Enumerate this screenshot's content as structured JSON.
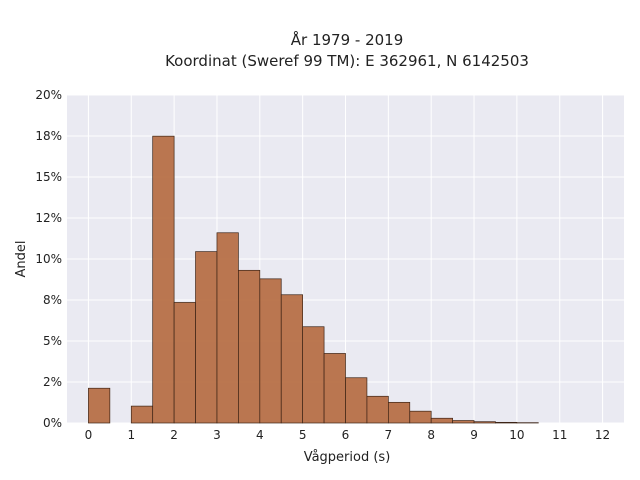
{
  "chart_data": {
    "type": "bar",
    "title": "År 1979 - 2019",
    "subtitle": "Koordinat (Sweref 99 TM): E 362961, N 6142503",
    "xlabel": "Vågperiod (s)",
    "ylabel": "Andel",
    "xlim": [
      -0.5,
      12.5
    ],
    "ylim": [
      0,
      0.2
    ],
    "x_ticks": [
      0,
      1,
      2,
      3,
      4,
      5,
      6,
      7,
      8,
      9,
      10,
      11,
      12
    ],
    "x_tick_labels": [
      "0",
      "1",
      "2",
      "3",
      "4",
      "5",
      "6",
      "7",
      "8",
      "9",
      "10",
      "11",
      "12"
    ],
    "y_ticks": [
      0,
      0.025,
      0.05,
      0.075,
      0.1,
      0.125,
      0.15,
      0.175,
      0.2
    ],
    "y_tick_labels": [
      "0%",
      "2%",
      "5%",
      "8%",
      "10%",
      "12%",
      "15%",
      "18%",
      "20%"
    ],
    "bin_width": 0.5,
    "bin_starts": [
      0,
      1,
      1.5,
      2,
      2.5,
      3,
      3.5,
      4,
      4.5,
      5,
      5.5,
      6,
      6.5,
      7,
      7.5,
      8,
      8.5,
      9,
      9.5,
      10
    ],
    "values": [
      0.0212,
      0.0103,
      0.1749,
      0.0735,
      0.1045,
      0.116,
      0.0931,
      0.0879,
      0.0782,
      0.0587,
      0.0424,
      0.0276,
      0.0163,
      0.0126,
      0.0072,
      0.0029,
      0.0015,
      0.0008,
      0.0004,
      0.0002
    ],
    "grid": true,
    "bar_color": "#b5693e",
    "background": "#eaeaf2"
  }
}
